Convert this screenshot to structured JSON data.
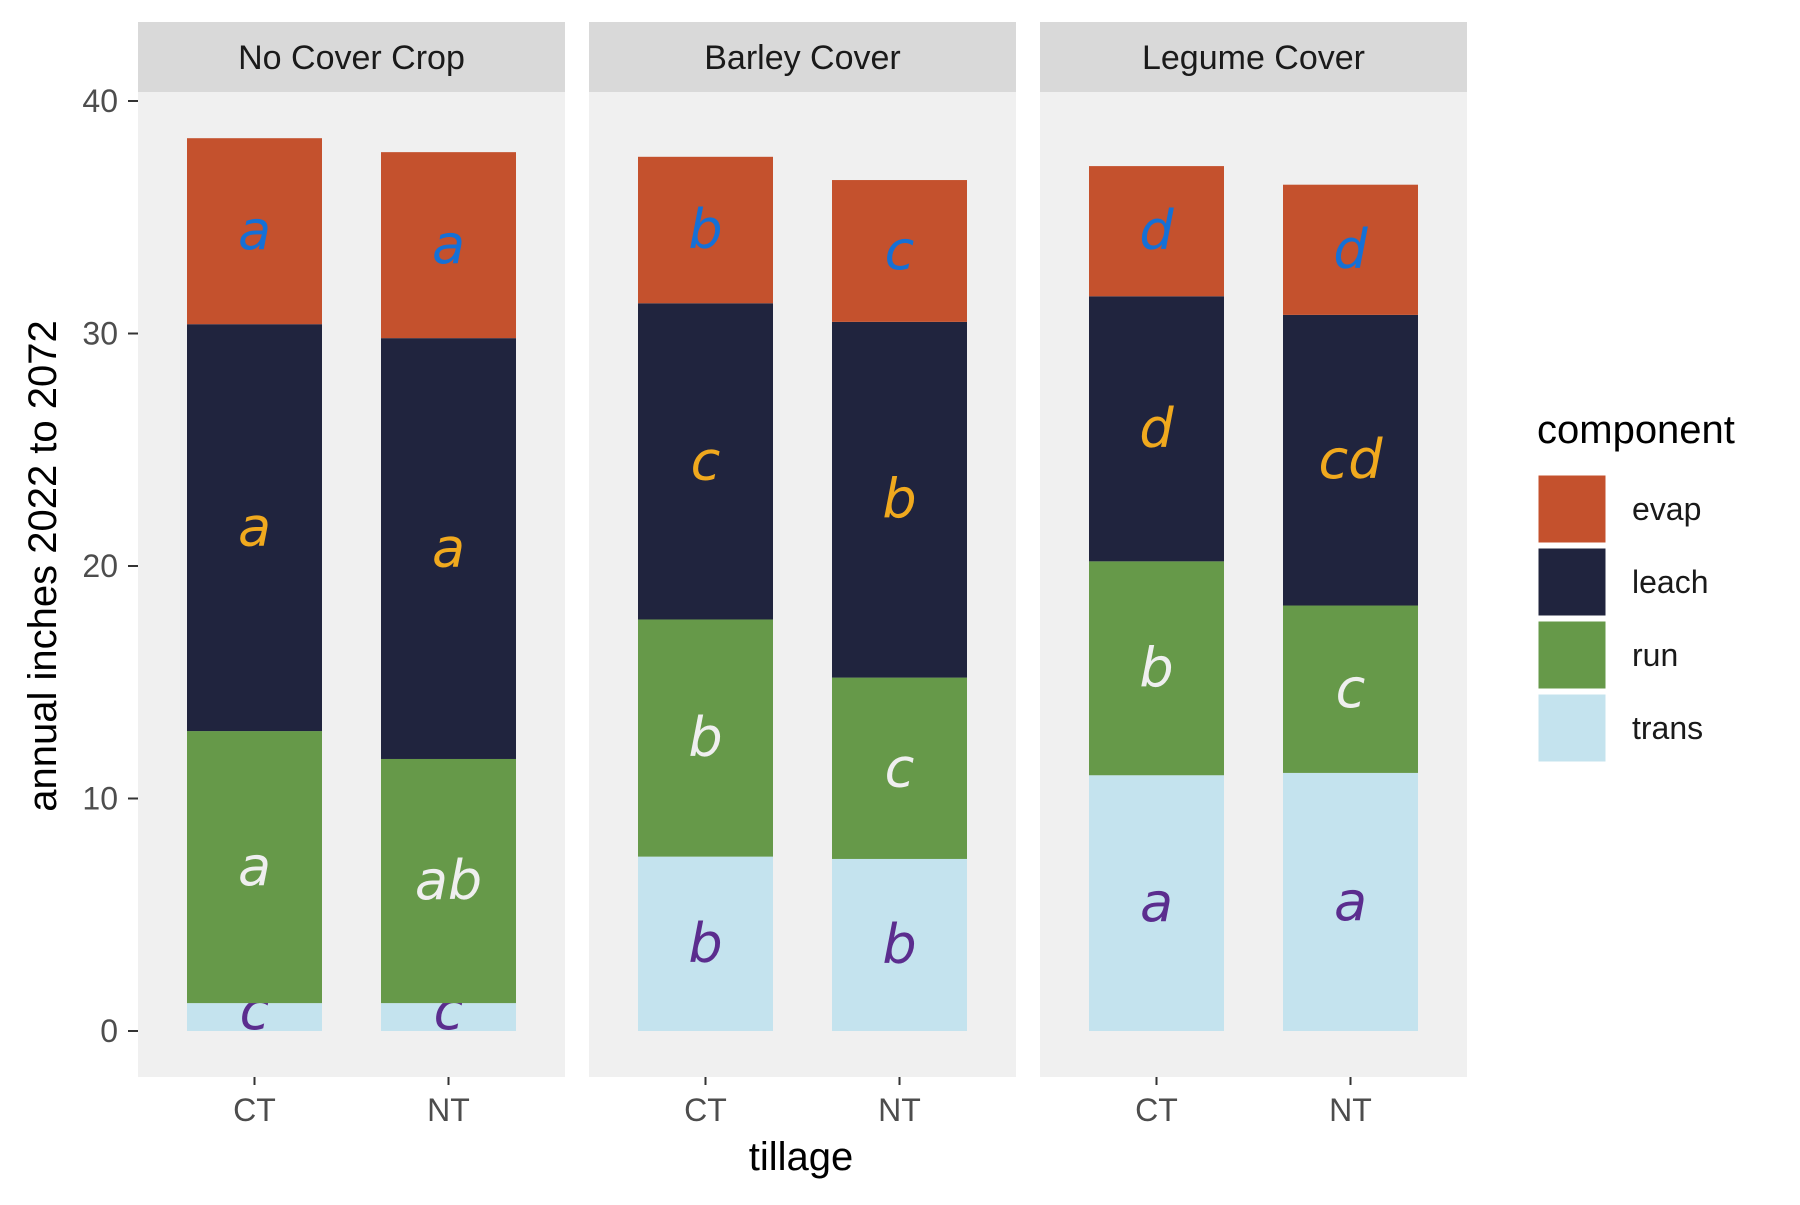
{
  "chart_data": {
    "type": "bar",
    "stacked": true,
    "xlabel": "tillage",
    "ylabel": "annual inches 2022 to 2072",
    "ylim": [
      0,
      40
    ],
    "yticks": [
      0,
      10,
      20,
      30,
      40
    ],
    "panels": [
      "No Cover Crop",
      "Barley Cover",
      "Legume Cover"
    ],
    "categories": [
      "CT",
      "NT"
    ],
    "legend": {
      "title": "component",
      "position": "right"
    },
    "grid": false,
    "series": [
      {
        "name": "trans",
        "color": "#c4e3ee",
        "values": [
          [
            1.2,
            1.2
          ],
          [
            7.5,
            7.4
          ],
          [
            11.0,
            11.1
          ]
        ],
        "letters": [
          [
            "c",
            "c"
          ],
          [
            "b",
            "b"
          ],
          [
            "a",
            "a"
          ]
        ],
        "letter_color": "#5b2d8e"
      },
      {
        "name": "run",
        "color": "#669949",
        "values": [
          [
            11.7,
            10.5
          ],
          [
            10.2,
            7.8
          ],
          [
            9.2,
            7.2
          ]
        ],
        "letters": [
          [
            "a",
            "ab"
          ],
          [
            "b",
            "c"
          ],
          [
            "b",
            "c"
          ]
        ],
        "letter_color": "#efefef"
      },
      {
        "name": "leach",
        "color": "#20243e",
        "values": [
          [
            17.5,
            18.1
          ],
          [
            13.6,
            15.3
          ],
          [
            11.4,
            12.5
          ]
        ],
        "letters": [
          [
            "a",
            "a"
          ],
          [
            "c",
            "b"
          ],
          [
            "d",
            "cd"
          ]
        ],
        "letter_color": "#f0a91e"
      },
      {
        "name": "evap",
        "color": "#c4512d",
        "values": [
          [
            8.0,
            8.0
          ],
          [
            6.3,
            6.1
          ],
          [
            5.6,
            5.6
          ]
        ],
        "letters": [
          [
            "a",
            "a"
          ],
          [
            "b",
            "c"
          ],
          [
            "d",
            "d"
          ]
        ],
        "letter_color": "#1570d6"
      }
    ]
  }
}
